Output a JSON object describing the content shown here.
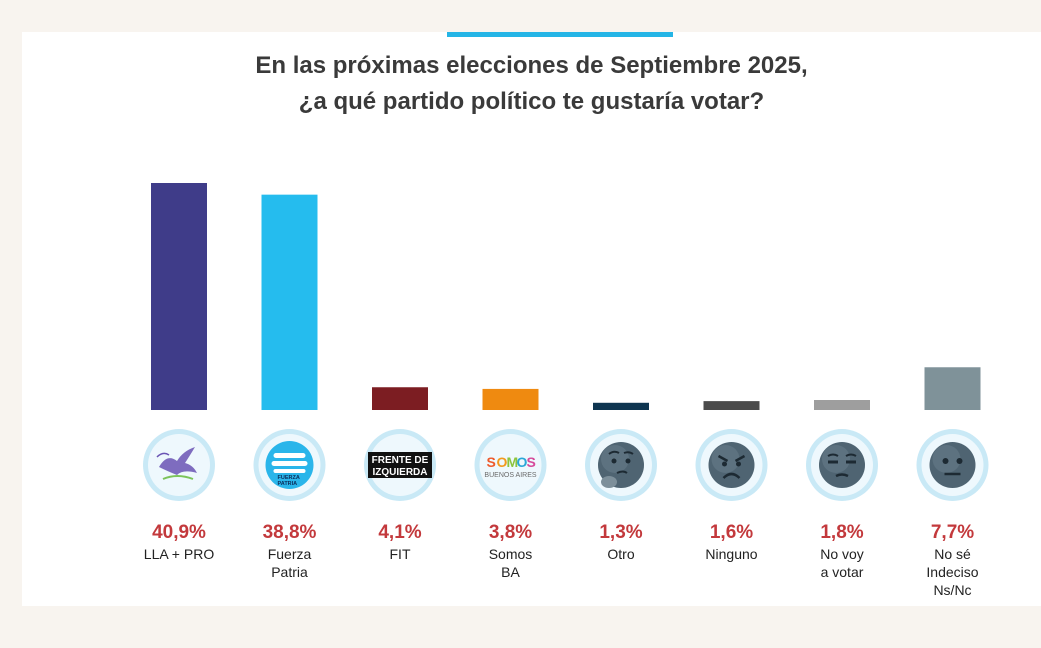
{
  "header": {
    "title_line1": "En las próximas elecciones de Septiembre 2025,",
    "title_line2": "¿a qué partido político te gustaría votar?"
  },
  "chart_data": {
    "type": "bar",
    "title": "En las próximas elecciones de Septiembre 2025, ¿a qué partido político te gustaría votar?",
    "categories": [
      "LLA + PRO",
      "Fuerza Patria",
      "FIT",
      "Somos BA",
      "Otro",
      "Ninguno",
      "No voy a votar",
      "No sé Indeciso Ns/Nc"
    ],
    "values": [
      40.9,
      38.8,
      4.1,
      3.8,
      1.3,
      1.6,
      1.8,
      7.7
    ],
    "value_labels": [
      "40,9%",
      "38,8%",
      "4,1%",
      "3,8%",
      "1,3%",
      "1,6%",
      "1,8%",
      "7,7%"
    ],
    "label_lines": [
      [
        "LLA + PRO"
      ],
      [
        "Fuerza",
        "Patria"
      ],
      [
        "FIT"
      ],
      [
        "Somos",
        "BA"
      ],
      [
        "Otro"
      ],
      [
        "Ninguno"
      ],
      [
        "No voy",
        "a votar"
      ],
      [
        "No sé",
        "Indeciso",
        "Ns/Nc"
      ]
    ],
    "bar_colors": [
      "#3f3c89",
      "#25bcee",
      "#7c1d22",
      "#ef8a10",
      "#0e3550",
      "#4b4b4b",
      "#9e9e9e",
      "#7f9299"
    ],
    "icons": [
      "lla-pro-logo-icon",
      "fuerza-patria-logo-icon",
      "frente-de-izquierda-logo-icon",
      "somos-buenos-aires-logo-icon",
      "thinking-face-icon",
      "angry-face-icon",
      "unamused-face-icon",
      "neutral-face-icon"
    ],
    "logo_text": {
      "fuerza_patria": [
        "FUERZA",
        "PATRIA"
      ],
      "fit": [
        "FRENTE DE",
        "IZQUIERDA"
      ],
      "somos": [
        "SOMOS",
        "BUENOS AIRES"
      ]
    },
    "ylim": [
      0,
      41
    ],
    "grid": false,
    "legend": "none"
  },
  "colors": {
    "accent": "#25b5e6",
    "percent_text": "#c3393c",
    "icon_circle": "#c9e9f6",
    "icon_ring": "#8fd0ee"
  }
}
